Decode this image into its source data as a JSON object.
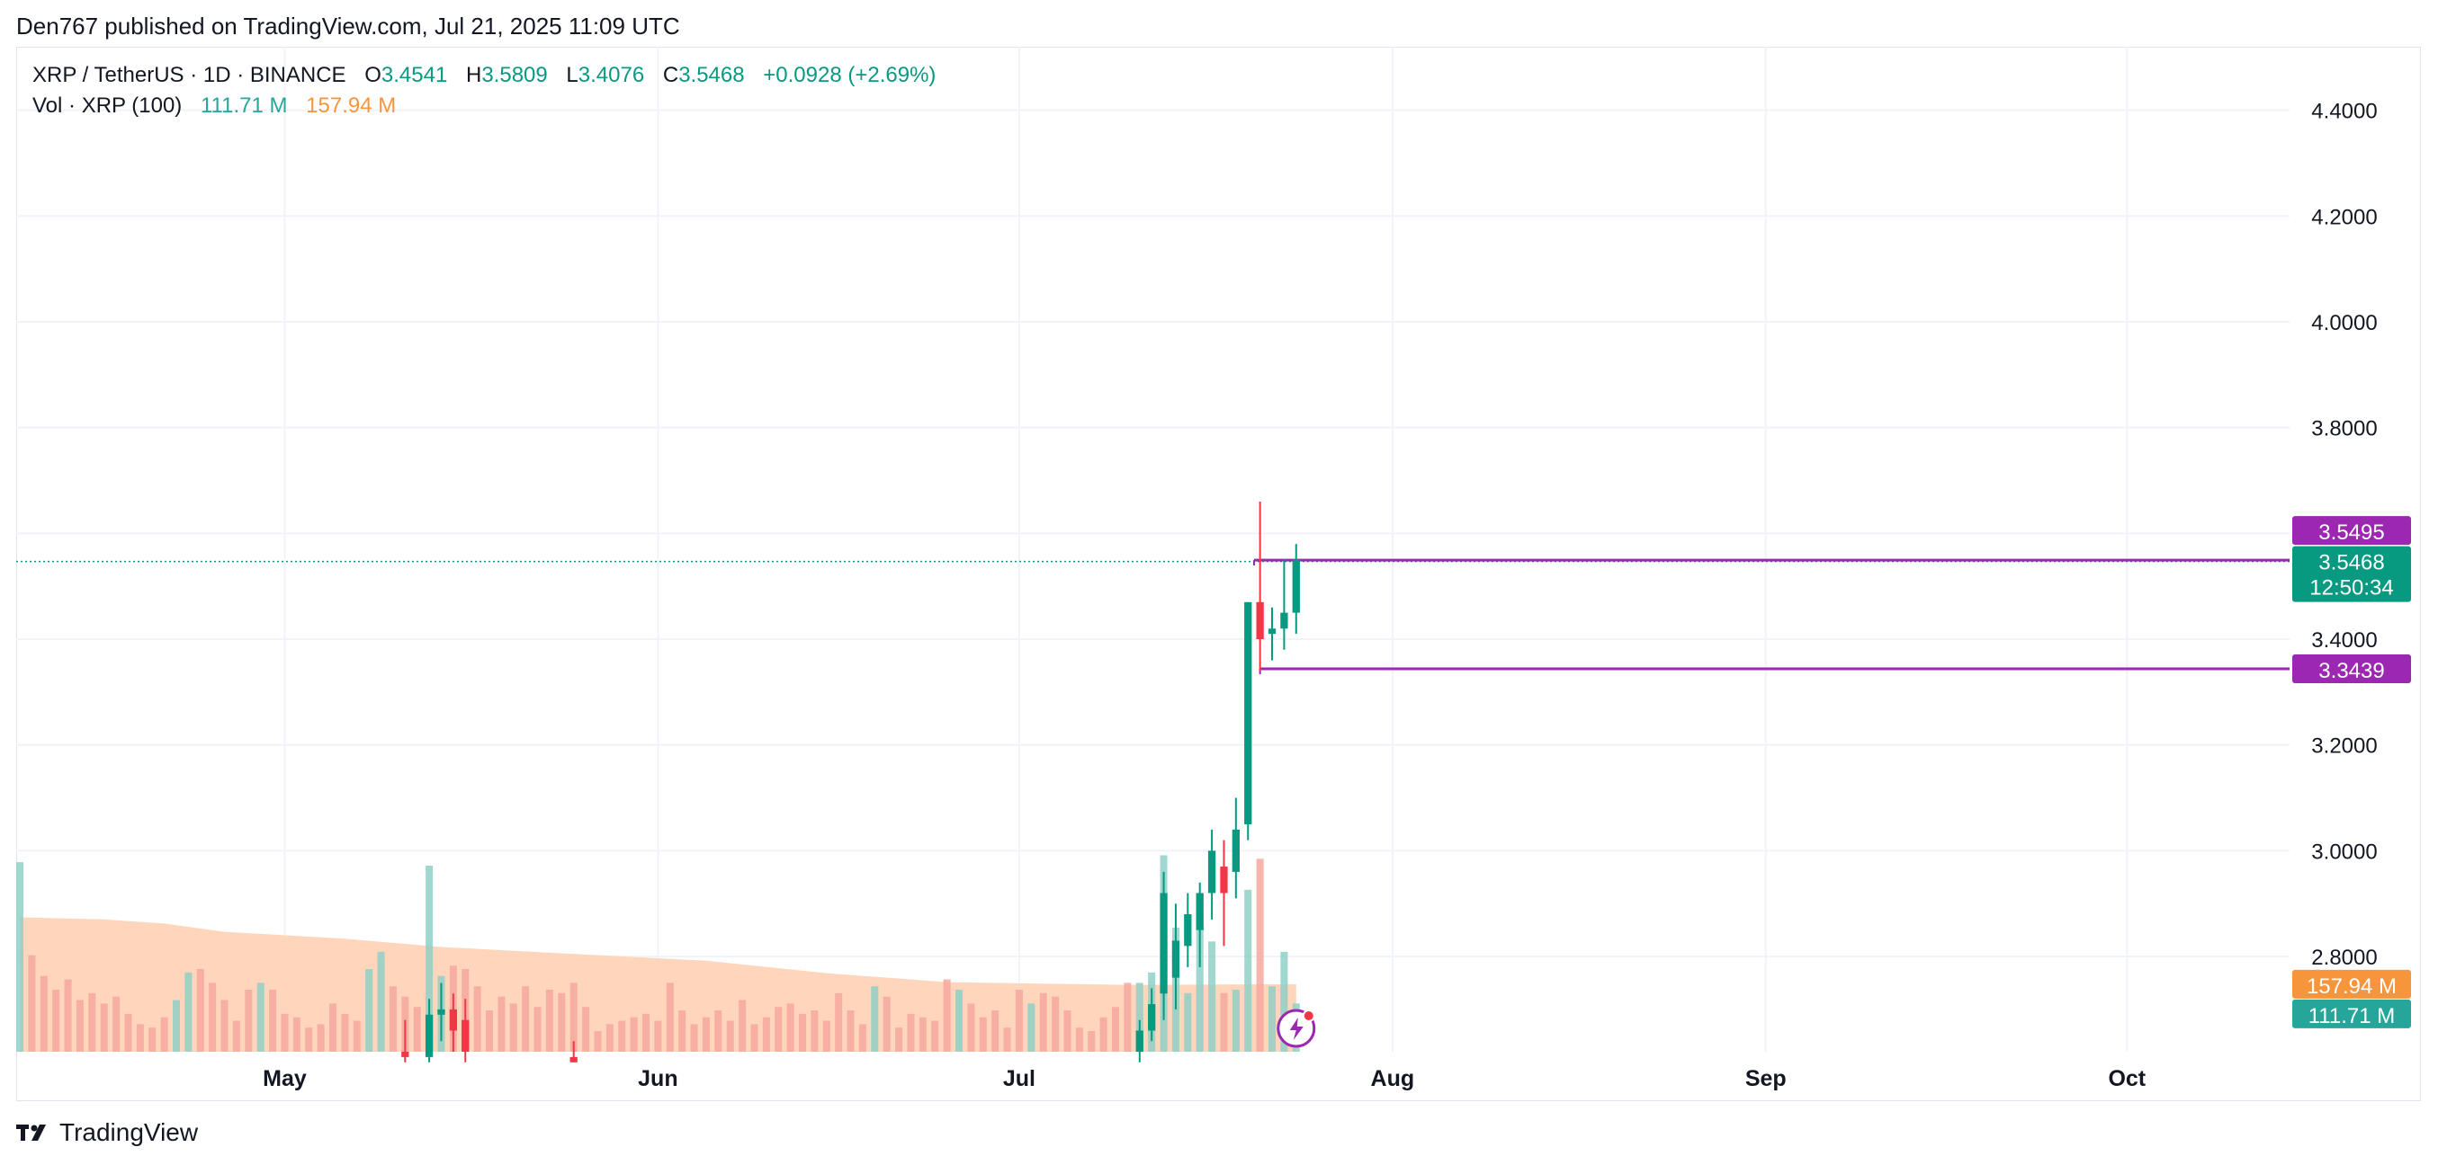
{
  "publish_line": "Den767 published on TradingView.com, Jul 21, 2025 11:09 UTC",
  "legend": {
    "symbol": "XRP / TetherUS · 1D · BINANCE",
    "o_label": "O",
    "o_value": "3.4541",
    "h_label": "H",
    "h_value": "3.5809",
    "l_label": "L",
    "l_value": "3.4076",
    "c_label": "C",
    "c_value": "3.5468",
    "change": "+0.0928 (+2.69%)",
    "vol_label": "Vol · XRP (100)",
    "vol_value": "111.71 M",
    "vol_ma_value": "157.94 M"
  },
  "footer": {
    "brand": "TradingView"
  },
  "colors": {
    "up": "#089981",
    "down": "#f23645",
    "vol_up": "#8fd0c5",
    "vol_down": "#f7a89f",
    "vol_ma_fill": "#ffcfb0",
    "hline": "#9c27b0",
    "grid": "#f0f3fa",
    "text": "#131722"
  },
  "chart_data": {
    "type": "candlestick",
    "title": "XRP / TetherUS · 1D · BINANCE",
    "ylim": [
      2.62,
      4.52
    ],
    "y_ticks": [
      2.8,
      3.0,
      3.2,
      3.4,
      3.6,
      3.8,
      4.0,
      4.2,
      4.4
    ],
    "y_tick_labels": [
      "2.8000",
      "3.0000",
      "3.2000",
      "3.4000",
      "3.6000",
      "3.8000",
      "4.0000",
      "4.2000",
      "4.4000"
    ],
    "x_labels": [
      {
        "label": "May",
        "day": 30
      },
      {
        "label": "Jun",
        "day": 61
      },
      {
        "label": "Jul",
        "day": 91
      },
      {
        "label": "Aug",
        "day": 122
      },
      {
        "label": "Sep",
        "day": 153
      },
      {
        "label": "Oct",
        "day": 183
      }
    ],
    "x_range_days": [
      7.7,
      196.5
    ],
    "candles": [
      {
        "day": 40,
        "o": 2.62,
        "h": 2.68,
        "l": 2.6,
        "c": 2.61
      },
      {
        "day": 42,
        "o": 2.61,
        "h": 2.72,
        "l": 2.6,
        "c": 2.69
      },
      {
        "day": 43,
        "o": 2.69,
        "h": 2.75,
        "l": 2.64,
        "c": 2.7
      },
      {
        "day": 44,
        "o": 2.7,
        "h": 2.73,
        "l": 2.62,
        "c": 2.66
      },
      {
        "day": 45,
        "o": 2.68,
        "h": 2.72,
        "l": 2.6,
        "c": 2.62
      },
      {
        "day": 54,
        "o": 2.61,
        "h": 2.64,
        "l": 2.6,
        "c": 2.6
      },
      {
        "day": 101,
        "o": 2.62,
        "h": 2.68,
        "l": 2.6,
        "c": 2.66
      },
      {
        "day": 102,
        "o": 2.66,
        "h": 2.74,
        "l": 2.64,
        "c": 2.71
      },
      {
        "day": 103,
        "o": 2.73,
        "h": 2.96,
        "l": 2.68,
        "c": 2.92
      },
      {
        "day": 104,
        "o": 2.76,
        "h": 2.9,
        "l": 2.7,
        "c": 2.83
      },
      {
        "day": 105,
        "o": 2.82,
        "h": 2.92,
        "l": 2.78,
        "c": 2.88
      },
      {
        "day": 106,
        "o": 2.85,
        "h": 2.94,
        "l": 2.78,
        "c": 2.92
      },
      {
        "day": 107,
        "o": 2.92,
        "h": 3.04,
        "l": 2.87,
        "c": 3.0
      },
      {
        "day": 108,
        "o": 2.97,
        "h": 3.02,
        "l": 2.82,
        "c": 2.92
      },
      {
        "day": 109,
        "o": 2.96,
        "h": 3.1,
        "l": 2.91,
        "c": 3.04
      },
      {
        "day": 110,
        "o": 3.05,
        "h": 3.47,
        "l": 3.02,
        "c": 3.47
      },
      {
        "day": 111,
        "o": 3.47,
        "h": 3.66,
        "l": 3.34,
        "c": 3.4
      },
      {
        "day": 112,
        "o": 3.41,
        "h": 3.46,
        "l": 3.36,
        "c": 3.42
      },
      {
        "day": 113,
        "o": 3.42,
        "h": 3.55,
        "l": 3.38,
        "c": 3.45
      },
      {
        "day": 114,
        "o": 3.45,
        "h": 3.58,
        "l": 3.41,
        "c": 3.55
      }
    ],
    "volume": {
      "max": 3.0,
      "series": [
        {
          "day": 8,
          "v": 2.75,
          "dir": "up"
        },
        {
          "day": 9,
          "v": 1.4,
          "dir": "down"
        },
        {
          "day": 10,
          "v": 1.1,
          "dir": "down"
        },
        {
          "day": 11,
          "v": 0.9,
          "dir": "down"
        },
        {
          "day": 12,
          "v": 1.05,
          "dir": "down"
        },
        {
          "day": 13,
          "v": 0.75,
          "dir": "down"
        },
        {
          "day": 14,
          "v": 0.85,
          "dir": "down"
        },
        {
          "day": 15,
          "v": 0.7,
          "dir": "down"
        },
        {
          "day": 16,
          "v": 0.8,
          "dir": "down"
        },
        {
          "day": 17,
          "v": 0.55,
          "dir": "down"
        },
        {
          "day": 18,
          "v": 0.4,
          "dir": "down"
        },
        {
          "day": 19,
          "v": 0.35,
          "dir": "down"
        },
        {
          "day": 20,
          "v": 0.5,
          "dir": "down"
        },
        {
          "day": 21,
          "v": 0.75,
          "dir": "up"
        },
        {
          "day": 22,
          "v": 1.15,
          "dir": "up"
        },
        {
          "day": 23,
          "v": 1.2,
          "dir": "down"
        },
        {
          "day": 24,
          "v": 1.0,
          "dir": "down"
        },
        {
          "day": 25,
          "v": 0.75,
          "dir": "down"
        },
        {
          "day": 26,
          "v": 0.45,
          "dir": "down"
        },
        {
          "day": 27,
          "v": 0.9,
          "dir": "down"
        },
        {
          "day": 28,
          "v": 1.0,
          "dir": "up"
        },
        {
          "day": 29,
          "v": 0.9,
          "dir": "down"
        },
        {
          "day": 30,
          "v": 0.55,
          "dir": "down"
        },
        {
          "day": 31,
          "v": 0.5,
          "dir": "down"
        },
        {
          "day": 32,
          "v": 0.35,
          "dir": "down"
        },
        {
          "day": 33,
          "v": 0.4,
          "dir": "down"
        },
        {
          "day": 34,
          "v": 0.7,
          "dir": "down"
        },
        {
          "day": 35,
          "v": 0.55,
          "dir": "down"
        },
        {
          "day": 36,
          "v": 0.45,
          "dir": "down"
        },
        {
          "day": 37,
          "v": 1.2,
          "dir": "up"
        },
        {
          "day": 38,
          "v": 1.45,
          "dir": "up"
        },
        {
          "day": 39,
          "v": 0.95,
          "dir": "down"
        },
        {
          "day": 40,
          "v": 0.8,
          "dir": "down"
        },
        {
          "day": 41,
          "v": 0.65,
          "dir": "down"
        },
        {
          "day": 42,
          "v": 2.7,
          "dir": "up"
        },
        {
          "day": 43,
          "v": 1.1,
          "dir": "up"
        },
        {
          "day": 44,
          "v": 1.25,
          "dir": "down"
        },
        {
          "day": 45,
          "v": 1.2,
          "dir": "down"
        },
        {
          "day": 46,
          "v": 0.95,
          "dir": "down"
        },
        {
          "day": 47,
          "v": 0.6,
          "dir": "down"
        },
        {
          "day": 48,
          "v": 0.8,
          "dir": "down"
        },
        {
          "day": 49,
          "v": 0.7,
          "dir": "down"
        },
        {
          "day": 50,
          "v": 0.95,
          "dir": "down"
        },
        {
          "day": 51,
          "v": 0.65,
          "dir": "down"
        },
        {
          "day": 52,
          "v": 0.9,
          "dir": "down"
        },
        {
          "day": 53,
          "v": 0.85,
          "dir": "down"
        },
        {
          "day": 54,
          "v": 1.0,
          "dir": "down"
        },
        {
          "day": 55,
          "v": 0.65,
          "dir": "down"
        },
        {
          "day": 56,
          "v": 0.3,
          "dir": "down"
        },
        {
          "day": 57,
          "v": 0.4,
          "dir": "down"
        },
        {
          "day": 58,
          "v": 0.45,
          "dir": "down"
        },
        {
          "day": 59,
          "v": 0.5,
          "dir": "down"
        },
        {
          "day": 60,
          "v": 0.55,
          "dir": "down"
        },
        {
          "day": 61,
          "v": 0.45,
          "dir": "down"
        },
        {
          "day": 62,
          "v": 1.0,
          "dir": "down"
        },
        {
          "day": 63,
          "v": 0.6,
          "dir": "down"
        },
        {
          "day": 64,
          "v": 0.4,
          "dir": "down"
        },
        {
          "day": 65,
          "v": 0.5,
          "dir": "down"
        },
        {
          "day": 66,
          "v": 0.6,
          "dir": "down"
        },
        {
          "day": 67,
          "v": 0.45,
          "dir": "down"
        },
        {
          "day": 68,
          "v": 0.75,
          "dir": "down"
        },
        {
          "day": 69,
          "v": 0.4,
          "dir": "down"
        },
        {
          "day": 70,
          "v": 0.5,
          "dir": "down"
        },
        {
          "day": 71,
          "v": 0.65,
          "dir": "down"
        },
        {
          "day": 72,
          "v": 0.7,
          "dir": "down"
        },
        {
          "day": 73,
          "v": 0.55,
          "dir": "down"
        },
        {
          "day": 74,
          "v": 0.6,
          "dir": "down"
        },
        {
          "day": 75,
          "v": 0.45,
          "dir": "down"
        },
        {
          "day": 76,
          "v": 0.85,
          "dir": "down"
        },
        {
          "day": 77,
          "v": 0.6,
          "dir": "down"
        },
        {
          "day": 78,
          "v": 0.4,
          "dir": "down"
        },
        {
          "day": 79,
          "v": 0.95,
          "dir": "up"
        },
        {
          "day": 80,
          "v": 0.8,
          "dir": "down"
        },
        {
          "day": 81,
          "v": 0.35,
          "dir": "down"
        },
        {
          "day": 82,
          "v": 0.55,
          "dir": "down"
        },
        {
          "day": 83,
          "v": 0.5,
          "dir": "down"
        },
        {
          "day": 84,
          "v": 0.45,
          "dir": "down"
        },
        {
          "day": 85,
          "v": 1.05,
          "dir": "down"
        },
        {
          "day": 86,
          "v": 0.9,
          "dir": "up"
        },
        {
          "day": 87,
          "v": 0.7,
          "dir": "down"
        },
        {
          "day": 88,
          "v": 0.5,
          "dir": "down"
        },
        {
          "day": 89,
          "v": 0.6,
          "dir": "down"
        },
        {
          "day": 90,
          "v": 0.35,
          "dir": "down"
        },
        {
          "day": 91,
          "v": 0.9,
          "dir": "down"
        },
        {
          "day": 92,
          "v": 0.7,
          "dir": "up"
        },
        {
          "day": 93,
          "v": 0.85,
          "dir": "down"
        },
        {
          "day": 94,
          "v": 0.8,
          "dir": "down"
        },
        {
          "day": 95,
          "v": 0.6,
          "dir": "down"
        },
        {
          "day": 96,
          "v": 0.35,
          "dir": "down"
        },
        {
          "day": 97,
          "v": 0.3,
          "dir": "down"
        },
        {
          "day": 98,
          "v": 0.5,
          "dir": "down"
        },
        {
          "day": 99,
          "v": 0.65,
          "dir": "down"
        },
        {
          "day": 100,
          "v": 1.0,
          "dir": "down"
        },
        {
          "day": 101,
          "v": 1.0,
          "dir": "up"
        },
        {
          "day": 102,
          "v": 1.15,
          "dir": "up"
        },
        {
          "day": 103,
          "v": 2.85,
          "dir": "up"
        },
        {
          "day": 104,
          "v": 1.8,
          "dir": "up"
        },
        {
          "day": 105,
          "v": 0.85,
          "dir": "up"
        },
        {
          "day": 106,
          "v": 2.05,
          "dir": "up"
        },
        {
          "day": 107,
          "v": 1.6,
          "dir": "up"
        },
        {
          "day": 108,
          "v": 0.85,
          "dir": "down"
        },
        {
          "day": 109,
          "v": 0.9,
          "dir": "up"
        },
        {
          "day": 110,
          "v": 2.35,
          "dir": "up"
        },
        {
          "day": 111,
          "v": 2.8,
          "dir": "down"
        },
        {
          "day": 112,
          "v": 0.95,
          "dir": "up"
        },
        {
          "day": 113,
          "v": 1.45,
          "dir": "up"
        },
        {
          "day": 114,
          "v": 0.7,
          "dir": "up"
        }
      ],
      "ma_points": [
        {
          "day": 8,
          "v": 1.95
        },
        {
          "day": 15,
          "v": 1.92
        },
        {
          "day": 20,
          "v": 1.86
        },
        {
          "day": 25,
          "v": 1.74
        },
        {
          "day": 35,
          "v": 1.64
        },
        {
          "day": 43,
          "v": 1.52
        },
        {
          "day": 55,
          "v": 1.41
        },
        {
          "day": 65,
          "v": 1.32
        },
        {
          "day": 75,
          "v": 1.14
        },
        {
          "day": 85,
          "v": 1.01
        },
        {
          "day": 100,
          "v": 0.97
        },
        {
          "day": 114,
          "v": 0.98
        }
      ]
    },
    "hlines": [
      {
        "value": 3.5495,
        "label": "3.5495",
        "start_day": 110.5
      },
      {
        "value": 3.3439,
        "label": "3.3439",
        "start_day": 111
      }
    ],
    "last_price": {
      "value": 3.5468,
      "label": "3.5468",
      "countdown": "12:50:34"
    },
    "vol_tags": [
      {
        "label": "157.94 M",
        "level": 0.98,
        "kind": "ma"
      },
      {
        "label": "111.71 M",
        "level": 0.55,
        "kind": "vol"
      }
    ]
  }
}
